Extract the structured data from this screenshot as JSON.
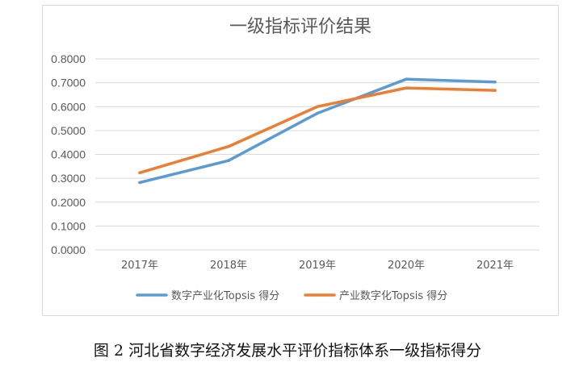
{
  "chart_data": {
    "type": "line",
    "title": "一级指标评价结果",
    "categories": [
      "2017年",
      "2018年",
      "2019年",
      "2020年",
      "2021年"
    ],
    "series": [
      {
        "name": "数字产业化Topsis 得分",
        "color": "#5b9bd5",
        "values": [
          0.282,
          0.374,
          0.572,
          0.715,
          0.703
        ]
      },
      {
        "name": "产业数字化Topsis 得分",
        "color": "#ed7d31",
        "values": [
          0.323,
          0.433,
          0.6,
          0.678,
          0.668
        ]
      }
    ],
    "ylim": [
      0,
      0.8
    ],
    "yticks": [
      "0.0000",
      "0.1000",
      "0.2000",
      "0.3000",
      "0.4000",
      "0.5000",
      "0.6000",
      "0.7000",
      "0.8000"
    ],
    "grid": true,
    "legend_position": "bottom"
  },
  "caption": "图 2   河北省数字经济发展水平评价指标体系一级指标得分"
}
